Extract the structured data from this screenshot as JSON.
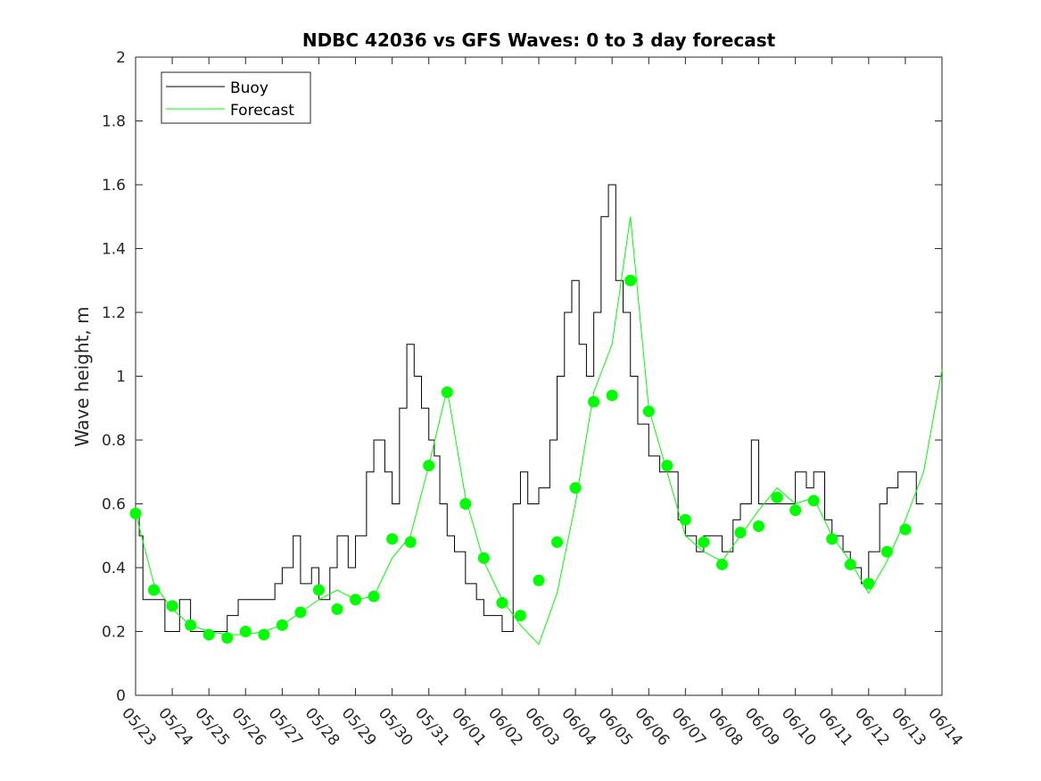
{
  "chart_data": {
    "type": "line",
    "title": "NDBC 42036 vs GFS Waves: 0 to 3 day forecast",
    "xlabel": "",
    "ylabel": "Wave height, m",
    "xlim": [
      "05/23",
      "06/14"
    ],
    "ylim": [
      0,
      2
    ],
    "yticks": [
      0,
      0.2,
      0.4,
      0.6,
      0.8,
      1,
      1.2,
      1.4,
      1.6,
      1.8,
      2
    ],
    "ytick_labels": [
      "0",
      "0.2",
      "0.4",
      "0.6",
      "0.8",
      "1",
      "1.2",
      "1.4",
      "1.6",
      "1.8",
      "2"
    ],
    "xtick_labels": [
      "05/23",
      "05/24",
      "05/25",
      "05/26",
      "05/27",
      "05/28",
      "05/29",
      "05/30",
      "05/31",
      "06/01",
      "06/02",
      "06/03",
      "06/04",
      "06/05",
      "06/06",
      "06/07",
      "06/08",
      "06/09",
      "06/10",
      "06/11",
      "06/12",
      "06/13",
      "06/14"
    ],
    "legend": {
      "position": "top-left",
      "entries": [
        {
          "label": "Buoy",
          "color": "#000000"
        },
        {
          "label": "Forecast",
          "color": "#00ff00"
        }
      ]
    },
    "colors": {
      "buoy": "#000000",
      "forecast": "#00ff00",
      "axis": "#262626"
    },
    "series": [
      {
        "name": "Buoy",
        "x": [
          0,
          0.1,
          0.2,
          0.5,
          0.8,
          1.0,
          1.2,
          1.5,
          1.8,
          2.0,
          2.3,
          2.5,
          2.8,
          3.0,
          3.3,
          3.5,
          3.8,
          4.0,
          4.3,
          4.5,
          4.8,
          5.0,
          5.3,
          5.5,
          5.8,
          6.0,
          6.3,
          6.5,
          6.8,
          7.0,
          7.2,
          7.4,
          7.6,
          7.8,
          8.0,
          8.15,
          8.3,
          8.5,
          8.7,
          9.0,
          9.3,
          9.5,
          9.8,
          10.0,
          10.3,
          10.5,
          10.7,
          11.0,
          11.3,
          11.5,
          11.7,
          11.9,
          12.1,
          12.3,
          12.5,
          12.7,
          12.9,
          13.1,
          13.3,
          13.5,
          13.7,
          14.0,
          14.3,
          14.5,
          14.8,
          15.0,
          15.3,
          15.5,
          15.8,
          16.0,
          16.3,
          16.5,
          16.8,
          17.0,
          17.2,
          17.5,
          17.8,
          18.0,
          18.3,
          18.5,
          18.8,
          19.0,
          19.3,
          19.5,
          19.8,
          20.0,
          20.3,
          20.5,
          20.8,
          21.0,
          21.3,
          21.5
        ],
        "y": [
          0.57,
          0.5,
          0.3,
          0.3,
          0.2,
          0.2,
          0.3,
          0.2,
          0.2,
          0.2,
          0.2,
          0.25,
          0.3,
          0.3,
          0.3,
          0.3,
          0.35,
          0.4,
          0.5,
          0.35,
          0.4,
          0.3,
          0.4,
          0.5,
          0.4,
          0.5,
          0.7,
          0.8,
          0.7,
          0.6,
          0.9,
          1.1,
          1.0,
          0.9,
          0.8,
          0.75,
          0.6,
          0.5,
          0.45,
          0.35,
          0.3,
          0.25,
          0.25,
          0.2,
          0.6,
          0.7,
          0.6,
          0.65,
          0.8,
          1.0,
          1.2,
          1.3,
          1.1,
          1.0,
          1.2,
          1.5,
          1.6,
          1.3,
          1.2,
          1.0,
          0.85,
          0.75,
          0.7,
          0.7,
          0.55,
          0.5,
          0.45,
          0.5,
          0.5,
          0.45,
          0.55,
          0.6,
          0.8,
          0.6,
          0.6,
          0.6,
          0.6,
          0.7,
          0.65,
          0.7,
          0.55,
          0.5,
          0.45,
          0.4,
          0.35,
          0.45,
          0.6,
          0.65,
          0.7,
          0.7,
          0.6,
          0.6
        ]
      },
      {
        "name": "Forecast",
        "x": [
          0,
          0.5,
          1.0,
          1.5,
          2.0,
          2.5,
          3.0,
          3.5,
          4.0,
          4.5,
          5.0,
          5.5,
          6.0,
          6.5,
          7.0,
          7.5,
          8.0,
          8.5,
          9.0,
          9.5,
          10.0,
          10.5,
          11.0,
          11.5,
          12.0,
          12.5,
          13.0,
          13.5,
          14.0,
          14.5,
          15.0,
          15.5,
          16.0,
          16.5,
          17.0,
          17.5,
          18.0,
          18.5,
          19.0,
          19.5,
          20.0,
          20.5,
          21.0,
          21.5,
          22.0
        ],
        "y": [
          0.57,
          0.35,
          0.27,
          0.22,
          0.2,
          0.19,
          0.19,
          0.2,
          0.22,
          0.26,
          0.3,
          0.33,
          0.3,
          0.31,
          0.43,
          0.5,
          0.72,
          0.96,
          0.62,
          0.42,
          0.3,
          0.22,
          0.16,
          0.32,
          0.6,
          0.95,
          1.1,
          1.5,
          0.9,
          0.7,
          0.5,
          0.45,
          0.42,
          0.5,
          0.58,
          0.65,
          0.6,
          0.62,
          0.5,
          0.42,
          0.32,
          0.42,
          0.55,
          0.7,
          1.02
        ]
      }
    ],
    "forecast_markers": {
      "x": [
        0,
        0.5,
        1.0,
        1.5,
        2.0,
        2.5,
        3.0,
        3.5,
        4.0,
        4.5,
        5.0,
        5.5,
        6.0,
        6.5,
        7.0,
        7.5,
        8.0,
        8.5,
        9.0,
        9.5,
        10.0,
        10.5,
        11.0,
        11.5,
        12.0,
        12.5,
        13.0,
        13.5,
        14.0,
        14.5,
        15.0,
        15.5,
        16.0,
        16.5,
        17.0,
        17.5,
        18.0,
        18.5,
        19.0,
        19.5,
        20.0,
        20.5,
        21.0
      ],
      "y": [
        0.57,
        0.33,
        0.28,
        0.22,
        0.19,
        0.18,
        0.2,
        0.19,
        0.22,
        0.26,
        0.33,
        0.27,
        0.3,
        0.31,
        0.49,
        0.48,
        0.72,
        0.95,
        0.6,
        0.43,
        0.29,
        0.25,
        0.36,
        0.48,
        0.65,
        0.92,
        0.94,
        1.3,
        0.89,
        0.72,
        0.55,
        0.48,
        0.41,
        0.51,
        0.53,
        0.62,
        0.58,
        0.61,
        0.49,
        0.41,
        0.35,
        0.45,
        0.52
      ]
    }
  }
}
